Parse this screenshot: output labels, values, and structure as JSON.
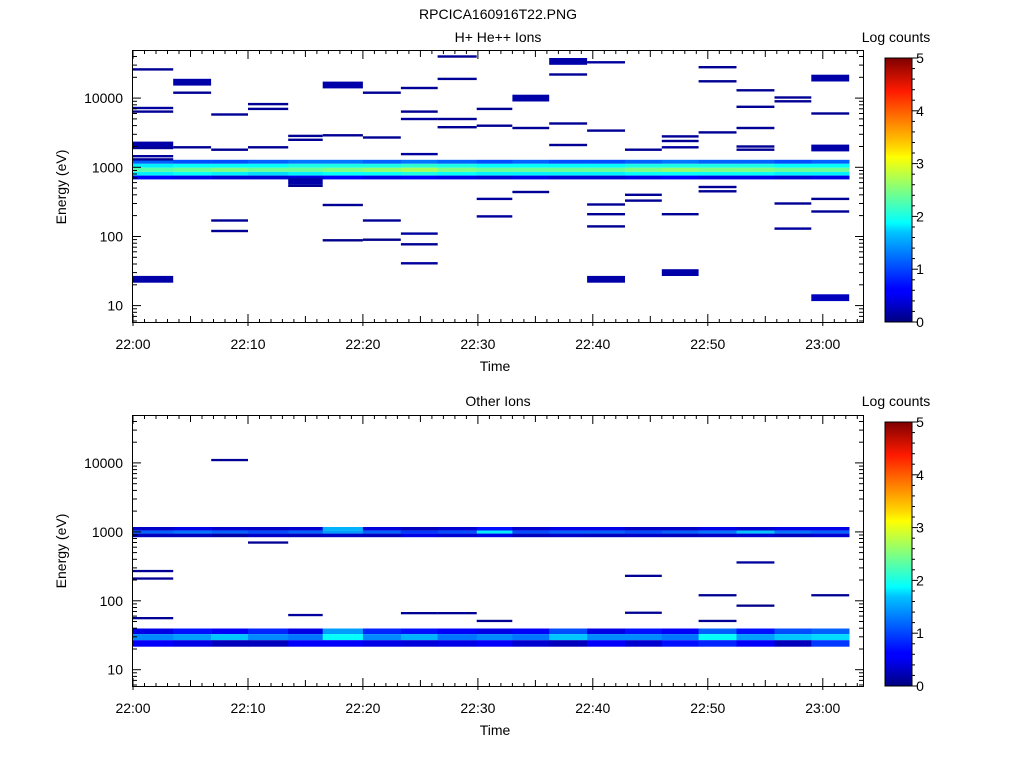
{
  "page_title": "RPCICA160916T22.PNG",
  "chart_data": [
    {
      "type": "heatmap",
      "title": "H+ He++ Ions",
      "xlabel": "Time",
      "ylabel": "Energy (eV)",
      "yscale": "log",
      "ylim": [
        5.8,
        48000
      ],
      "xlim": [
        "22:00",
        "23:03:30"
      ],
      "x_ticks": [
        "22:00",
        "22:10",
        "22:20",
        "22:30",
        "22:40",
        "22:50",
        "23:00"
      ],
      "y_ticks": [
        "10",
        "100",
        "1000",
        "10000"
      ],
      "colorbar": {
        "label": "Log counts",
        "min": 0,
        "max": 5,
        "ticks": [
          "0",
          "1",
          "2",
          "3",
          "4",
          "5"
        ]
      },
      "time_bins_minutes": [
        0,
        3.5,
        6.8,
        10,
        13.5,
        16.5,
        20,
        23.3,
        26.5,
        29.9,
        33,
        36.2,
        39.5,
        42.8,
        46,
        49.2,
        52.5,
        55.8,
        59,
        62.3
      ],
      "band_energies_eV": [
        1200,
        1050,
        920,
        800,
        720
      ],
      "band_levels": [
        [
          1.1,
          1.8,
          2.3,
          1.8,
          0.6
        ],
        [
          1.0,
          1.9,
          2.4,
          1.9,
          0.5
        ],
        [
          1.0,
          1.9,
          2.5,
          1.8,
          0.4
        ],
        [
          1.1,
          1.9,
          2.4,
          1.7,
          0.4
        ],
        [
          1.2,
          2.0,
          2.4,
          1.8,
          0.5
        ],
        [
          1.2,
          2.0,
          2.5,
          1.9,
          0.6
        ],
        [
          1.1,
          2.0,
          2.6,
          1.9,
          0.5
        ],
        [
          1.2,
          2.1,
          2.7,
          2.0,
          0.6
        ],
        [
          1.1,
          2.0,
          2.5,
          1.9,
          0.5
        ],
        [
          1.0,
          1.9,
          2.4,
          1.8,
          0.4
        ],
        [
          1.1,
          1.9,
          2.4,
          1.8,
          0.5
        ],
        [
          1.0,
          1.9,
          2.4,
          1.8,
          0.4
        ],
        [
          1.0,
          1.9,
          2.4,
          1.8,
          0.4
        ],
        [
          1.1,
          2.0,
          2.5,
          1.9,
          0.5
        ],
        [
          1.2,
          2.0,
          2.6,
          1.9,
          0.6
        ],
        [
          1.1,
          2.0,
          2.5,
          1.9,
          0.5
        ],
        [
          1.1,
          2.0,
          2.5,
          1.9,
          0.5
        ],
        [
          1.0,
          1.9,
          2.4,
          1.8,
          0.4
        ],
        [
          1.1,
          1.9,
          2.4,
          1.8,
          0.5
        ]
      ],
      "sparse_cells": [
        [
          0,
          3.5,
          26000,
          0.1
        ],
        [
          0,
          3.5,
          7200,
          0.15
        ],
        [
          0,
          3.5,
          6400,
          0.1
        ],
        [
          0,
          3.5,
          2100,
          0.2
        ],
        [
          0,
          3.5,
          1900,
          0.1
        ],
        [
          0,
          3.5,
          1450,
          0.15
        ],
        [
          0,
          3.5,
          1300,
          0.1
        ],
        [
          0,
          3.5,
          24,
          0.2
        ],
        [
          3.5,
          6.8,
          17000,
          0.2
        ],
        [
          3.5,
          6.8,
          12000,
          0.1
        ],
        [
          3.5,
          6.8,
          1950,
          0.1
        ],
        [
          6.8,
          10,
          5800,
          0.1
        ],
        [
          6.8,
          10,
          1800,
          0.1
        ],
        [
          6.8,
          10,
          170,
          0.1
        ],
        [
          6.8,
          10,
          120,
          0.1
        ],
        [
          10,
          13.5,
          8200,
          0.1
        ],
        [
          10,
          13.5,
          7000,
          0.1
        ],
        [
          10,
          13.5,
          1950,
          0.1
        ],
        [
          13.5,
          16.5,
          2850,
          0.1
        ],
        [
          13.5,
          16.5,
          2500,
          0.1
        ],
        [
          13.5,
          16.5,
          630,
          0.2
        ],
        [
          13.5,
          16.5,
          540,
          0.1
        ],
        [
          16.5,
          20,
          15500,
          0.2
        ],
        [
          16.5,
          20,
          2900,
          0.1
        ],
        [
          16.5,
          20,
          285,
          0.1
        ],
        [
          16.5,
          20,
          88,
          0.05
        ],
        [
          20,
          23.3,
          12000,
          0.1
        ],
        [
          20,
          23.3,
          2700,
          0.1
        ],
        [
          20,
          23.3,
          170,
          0.1
        ],
        [
          20,
          23.3,
          90,
          0.05
        ],
        [
          23.3,
          26.5,
          14000,
          0.1
        ],
        [
          23.3,
          26.5,
          5000,
          0.15
        ],
        [
          23.3,
          26.5,
          6400,
          0.1
        ],
        [
          23.3,
          26.5,
          1550,
          0.15
        ],
        [
          23.3,
          26.5,
          110,
          0.15
        ],
        [
          23.3,
          26.5,
          77,
          0.1
        ],
        [
          23.3,
          26.5,
          41,
          0.15
        ],
        [
          26.5,
          29.9,
          40000,
          0.1
        ],
        [
          26.5,
          29.9,
          19000,
          0.1
        ],
        [
          26.5,
          29.9,
          5000,
          0.1
        ],
        [
          26.5,
          29.9,
          3800,
          0.1
        ],
        [
          29.9,
          33,
          7000,
          0.1
        ],
        [
          29.9,
          33,
          4000,
          0.1
        ],
        [
          29.9,
          33,
          350,
          0.15
        ],
        [
          29.9,
          33,
          195,
          0.15
        ],
        [
          33,
          36.2,
          10000,
          0.2
        ],
        [
          33,
          36.2,
          3700,
          0.1
        ],
        [
          33,
          36.2,
          440,
          0.1
        ],
        [
          36.2,
          39.5,
          34000,
          0.2
        ],
        [
          36.2,
          39.5,
          22000,
          0.1
        ],
        [
          36.2,
          39.5,
          4300,
          0.1
        ],
        [
          36.2,
          39.5,
          2100,
          0.1
        ],
        [
          39.5,
          42.8,
          33000,
          0.15
        ],
        [
          39.5,
          42.8,
          3400,
          0.1
        ],
        [
          39.5,
          42.8,
          290,
          0.1
        ],
        [
          39.5,
          42.8,
          210,
          0.1
        ],
        [
          39.5,
          42.8,
          140,
          0.1
        ],
        [
          39.5,
          42.8,
          24,
          0.2
        ],
        [
          42.8,
          46,
          1800,
          0.1
        ],
        [
          42.8,
          46,
          400,
          0.1
        ],
        [
          42.8,
          46,
          330,
          0.1
        ],
        [
          46,
          49.2,
          2800,
          0.1
        ],
        [
          46,
          49.2,
          2400,
          0.1
        ],
        [
          46,
          49.2,
          1950,
          0.15
        ],
        [
          46,
          49.2,
          210,
          0.1
        ],
        [
          46,
          49.2,
          30,
          0.2
        ],
        [
          49.2,
          52.5,
          28000,
          0.1
        ],
        [
          49.2,
          52.5,
          17500,
          0.1
        ],
        [
          49.2,
          52.5,
          3200,
          0.1
        ],
        [
          49.2,
          52.5,
          520,
          0.1
        ],
        [
          49.2,
          52.5,
          450,
          0.1
        ],
        [
          52.5,
          55.8,
          13000,
          0.1
        ],
        [
          52.5,
          55.8,
          7500,
          0.1
        ],
        [
          52.5,
          55.8,
          3700,
          0.1
        ],
        [
          52.5,
          55.8,
          2000,
          0.1
        ],
        [
          52.5,
          55.8,
          1800,
          0.1
        ],
        [
          55.8,
          59,
          10200,
          0.1
        ],
        [
          55.8,
          59,
          9000,
          0.1
        ],
        [
          55.8,
          59,
          300,
          0.1
        ],
        [
          55.8,
          59,
          130,
          0.15
        ],
        [
          59,
          62.3,
          19500,
          0.2
        ],
        [
          59,
          62.3,
          6000,
          0.1
        ],
        [
          59,
          62.3,
          1900,
          0.2
        ],
        [
          59,
          62.3,
          350,
          0.1
        ],
        [
          59,
          62.3,
          230,
          0.1
        ],
        [
          59,
          62.3,
          13,
          0.3
        ]
      ]
    },
    {
      "type": "heatmap",
      "title": "Other Ions",
      "xlabel": "Time",
      "ylabel": "Energy (eV)",
      "yscale": "log",
      "ylim": [
        5.8,
        48000
      ],
      "xlim": [
        "22:00",
        "23:03:30"
      ],
      "x_ticks": [
        "22:00",
        "22:10",
        "22:20",
        "22:30",
        "22:40",
        "22:50",
        "23:00"
      ],
      "y_ticks": [
        "10",
        "100",
        "1000",
        "10000"
      ],
      "colorbar": {
        "label": "Log counts",
        "min": 0,
        "max": 5,
        "ticks": [
          "0",
          "1",
          "2",
          "3",
          "4",
          "5"
        ]
      },
      "time_bins_minutes": [
        0,
        3.5,
        6.8,
        10,
        13.5,
        16.5,
        20,
        23.3,
        26.5,
        29.9,
        33,
        36.2,
        39.5,
        42.8,
        46,
        49.2,
        52.5,
        55.8,
        59,
        62.3
      ],
      "band_energies_eV": [
        1100,
        990,
        900
      ],
      "band_levels": [
        [
          0.35,
          1.1,
          0.3
        ],
        [
          0.5,
          1.2,
          0.3
        ],
        [
          0.4,
          1.1,
          0.2
        ],
        [
          0.35,
          1.0,
          0.35
        ],
        [
          0.4,
          1.1,
          0.3
        ],
        [
          1.5,
          1.4,
          0.35
        ],
        [
          0.45,
          1.1,
          0.3
        ],
        [
          0.3,
          0.9,
          0.5
        ],
        [
          0.4,
          1.0,
          0.4
        ],
        [
          0.7,
          1.8,
          0.5
        ],
        [
          0.4,
          1.0,
          0.3
        ],
        [
          0.5,
          1.1,
          0.35
        ],
        [
          0.5,
          1.1,
          0.3
        ],
        [
          0.35,
          1.0,
          0.35
        ],
        [
          0.35,
          1.1,
          0.3
        ],
        [
          0.5,
          1.2,
          0.35
        ],
        [
          0.4,
          1.6,
          0.4
        ],
        [
          0.5,
          1.2,
          0.3
        ],
        [
          0.5,
          1.1,
          0.4
        ]
      ],
      "low_band_energies_eV": [
        36,
        30,
        24
      ],
      "low_band_levels": [
        [
          0.5,
          1.3,
          0.6
        ],
        [
          0.7,
          1.4,
          0.5
        ],
        [
          0.6,
          1.6,
          0.3
        ],
        [
          0.8,
          1.3,
          0.3
        ],
        [
          0.5,
          1.2,
          0.6
        ],
        [
          1.4,
          1.9,
          0.6
        ],
        [
          0.8,
          1.3,
          0.5
        ],
        [
          0.7,
          1.5,
          0.45
        ],
        [
          0.6,
          1.2,
          0.5
        ],
        [
          0.5,
          1.3,
          0.6
        ],
        [
          0.6,
          1.2,
          0.4
        ],
        [
          1.0,
          1.6,
          0.3
        ],
        [
          0.5,
          1.3,
          0.6
        ],
        [
          0.7,
          1.3,
          0.4
        ],
        [
          0.6,
          1.2,
          0.7
        ],
        [
          1.1,
          1.9,
          0.8
        ],
        [
          0.7,
          1.4,
          0.6
        ],
        [
          1.0,
          1.6,
          0.3
        ],
        [
          1.1,
          1.7,
          0.9
        ]
      ],
      "sparse_cells": [
        [
          0,
          3.5,
          270,
          0.1
        ],
        [
          0,
          3.5,
          210,
          0.1
        ],
        [
          0,
          3.5,
          56,
          0.1
        ],
        [
          6.8,
          10,
          11000,
          0.1
        ],
        [
          10,
          13.5,
          700,
          0.1
        ],
        [
          13.5,
          16.5,
          62,
          0.15
        ],
        [
          23.3,
          26.5,
          66,
          0.1
        ],
        [
          26.5,
          29.9,
          66,
          0.1
        ],
        [
          29.9,
          33,
          51,
          0.1
        ],
        [
          42.8,
          46,
          230,
          0.1
        ],
        [
          42.8,
          46,
          67,
          0.1
        ],
        [
          49.2,
          52.5,
          120,
          0.1
        ],
        [
          49.2,
          52.5,
          51,
          0.1
        ],
        [
          52.5,
          55.8,
          360,
          0.15
        ],
        [
          52.5,
          55.8,
          85,
          0.05
        ],
        [
          59,
          62.3,
          120,
          0.1
        ]
      ]
    }
  ]
}
